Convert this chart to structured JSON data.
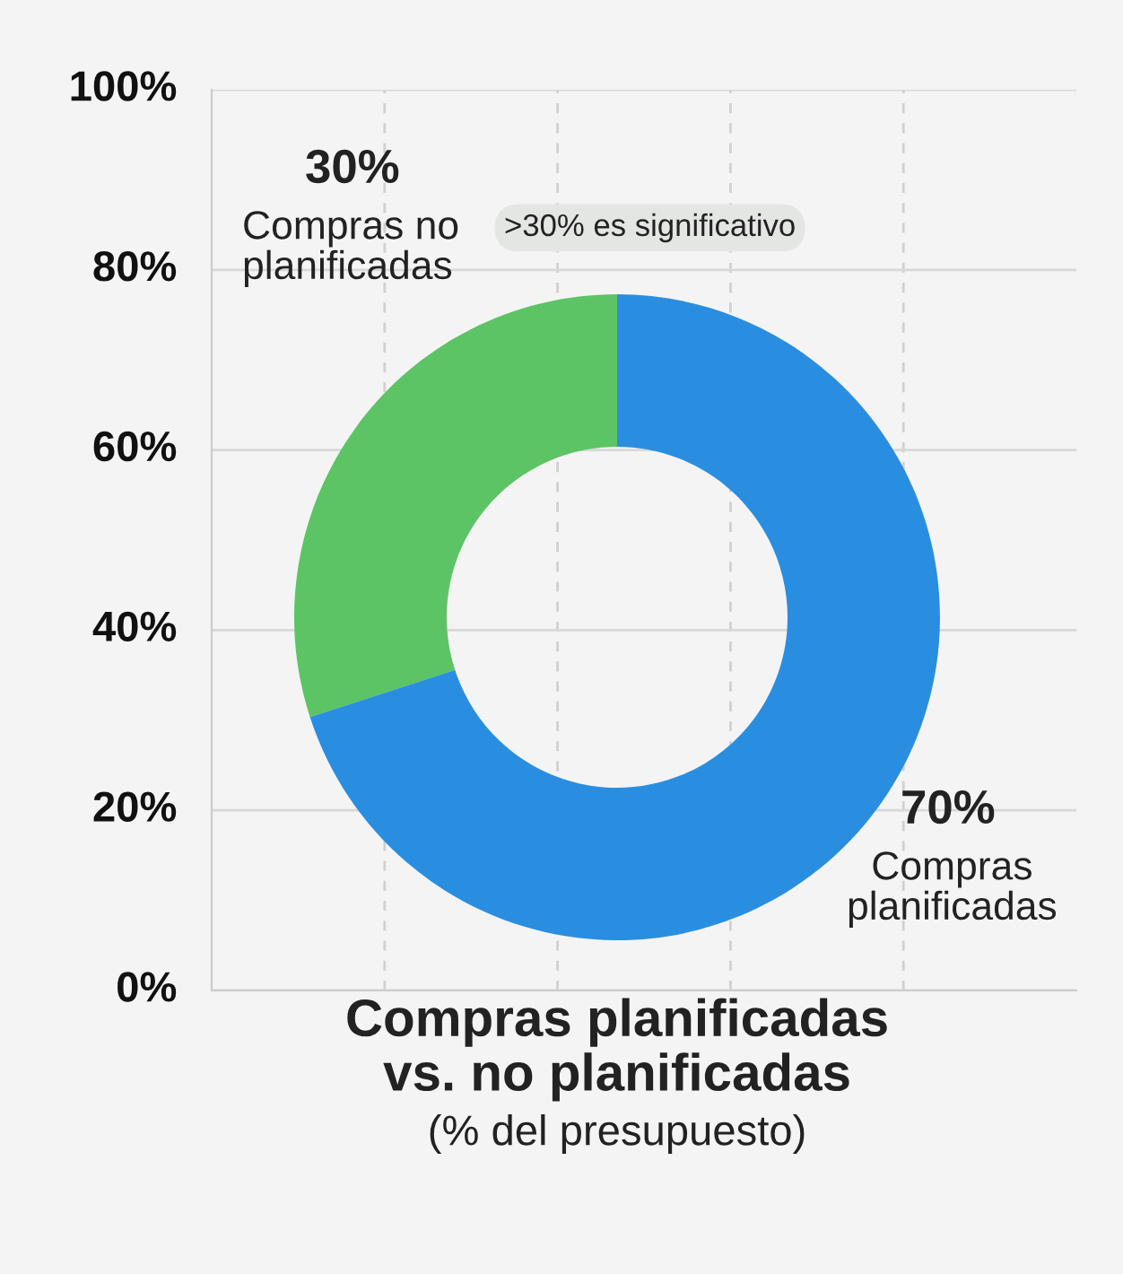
{
  "chart_data": {
    "type": "donut",
    "title": "Compras planificadas vs. no planificadas",
    "subtitle": "(% del presupuesto)",
    "categories": [
      "Compras no planificadas",
      "Compras planificadas"
    ],
    "values": [
      30,
      70
    ],
    "colors": [
      "#5cc464",
      "#2a8ee0"
    ],
    "value_labels": [
      "30%",
      "70%"
    ],
    "annotations": [
      ">30% es significativo",
      "100%",
      "80%",
      "60%",
      "40%",
      "20%",
      "0%"
    ],
    "grid": true
  }
}
